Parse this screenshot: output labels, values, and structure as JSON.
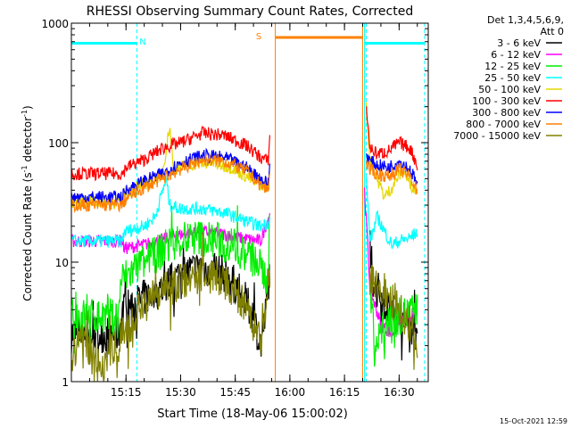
{
  "chart_data": {
    "type": "line",
    "title": "RHESSI Observing Summary Count Rates, Corrected",
    "xlabel": "Start Time (18-May-06 15:00:02)",
    "ylabel_main": "Corrected Count Rate (s",
    "ylabel_sup1": "-1",
    "ylabel_mid": " detector",
    "ylabel_sup2": "-1",
    "ylabel_end": ")",
    "y_scale": "log",
    "ylim": [
      1,
      1000
    ],
    "xlim_minutes": [
      0,
      98
    ],
    "x_ticks": [
      {
        "m": 15,
        "label": "15:15"
      },
      {
        "m": 30,
        "label": "15:30"
      },
      {
        "m": 45,
        "label": "15:45"
      },
      {
        "m": 60,
        "label": "16:00"
      },
      {
        "m": 75,
        "label": "16:15"
      },
      {
        "m": 90,
        "label": "16:30"
      }
    ],
    "y_ticks": [
      {
        "v": 1,
        "label": "1"
      },
      {
        "v": 10,
        "label": "10"
      },
      {
        "v": 100,
        "label": "100"
      },
      {
        "v": 1000,
        "label": "1000"
      }
    ],
    "legend_header": [
      "Det 1,3,4,5,6,9,",
      "Att 0"
    ],
    "series": [
      {
        "name": "3 - 6 keV",
        "color": "#000000",
        "seg1": [
          [
            0,
            2.5
          ],
          [
            13,
            2.5
          ],
          [
            14,
            4
          ],
          [
            20,
            5
          ],
          [
            25,
            6
          ],
          [
            30,
            8
          ],
          [
            36,
            9
          ],
          [
            42,
            8
          ],
          [
            46,
            6
          ],
          [
            50,
            3.5
          ],
          [
            52,
            2
          ],
          [
            53.5,
            4
          ],
          [
            54.5,
            9
          ]
        ],
        "seg2": [
          [
            82,
            8
          ],
          [
            84,
            6
          ],
          [
            87,
            4
          ],
          [
            90,
            3.5
          ],
          [
            93,
            3
          ],
          [
            95,
            2.5
          ]
        ]
      },
      {
        "name": "6 - 12 keV",
        "color": "#ff00ff",
        "seg1": [
          [
            0,
            15
          ],
          [
            14,
            15
          ],
          [
            14.5,
            13
          ],
          [
            20,
            14
          ],
          [
            24,
            15
          ],
          [
            27,
            16
          ],
          [
            30,
            17
          ],
          [
            36,
            18
          ],
          [
            42,
            17
          ],
          [
            46,
            16
          ],
          [
            52,
            15
          ],
          [
            54.5,
            26
          ]
        ],
        "seg2": [
          [
            80.5,
            40
          ],
          [
            81.5,
            12
          ],
          [
            82,
            6
          ],
          [
            85,
            3
          ],
          [
            88,
            2.5
          ],
          [
            90,
            3
          ],
          [
            93,
            3.5
          ],
          [
            95,
            4
          ]
        ]
      },
      {
        "name": "12 - 25 keV",
        "color": "#00ee00",
        "seg1": [
          [
            0,
            3.5
          ],
          [
            13,
            3.5
          ],
          [
            13.5,
            7
          ],
          [
            18,
            9
          ],
          [
            24,
            12
          ],
          [
            28,
            15
          ],
          [
            35,
            16
          ],
          [
            42,
            15
          ],
          [
            48,
            12
          ],
          [
            52,
            9
          ],
          [
            54,
            7
          ],
          [
            54.5,
            25
          ]
        ],
        "seg2": [
          [
            82,
            6
          ],
          [
            83.5,
            2
          ],
          [
            85,
            2.6
          ],
          [
            90,
            3.5
          ],
          [
            95,
            4
          ]
        ]
      },
      {
        "name": "25 - 50 keV",
        "color": "#00ffff",
        "seg1": [
          [
            0,
            15
          ],
          [
            14,
            15
          ],
          [
            14.5,
            18
          ],
          [
            20,
            20
          ],
          [
            23,
            24
          ],
          [
            26,
            50
          ],
          [
            27,
            30
          ],
          [
            30,
            28
          ],
          [
            36,
            28
          ],
          [
            42,
            26
          ],
          [
            48,
            22
          ],
          [
            52,
            20
          ],
          [
            54.5,
            22
          ]
        ],
        "seg2": [
          [
            81,
            50
          ],
          [
            82,
            15
          ],
          [
            84,
            24
          ],
          [
            86,
            18
          ],
          [
            88,
            14
          ],
          [
            90,
            15
          ],
          [
            93,
            16
          ],
          [
            95,
            18
          ]
        ]
      },
      {
        "name": "50 - 100 keV",
        "color": "#e6d800",
        "seg1": [
          [
            0,
            32
          ],
          [
            14,
            32
          ],
          [
            14.5,
            38
          ],
          [
            20,
            45
          ],
          [
            25,
            55
          ],
          [
            27,
            140
          ],
          [
            28,
            60
          ],
          [
            32,
            65
          ],
          [
            38,
            68
          ],
          [
            44,
            62
          ],
          [
            50,
            48
          ],
          [
            54,
            42
          ],
          [
            54.5,
            55
          ]
        ],
        "seg2": [
          [
            81,
            200
          ],
          [
            82,
            70
          ],
          [
            84,
            50
          ],
          [
            86,
            35
          ],
          [
            88,
            42
          ],
          [
            91,
            60
          ],
          [
            93,
            45
          ],
          [
            95,
            40
          ]
        ]
      },
      {
        "name": "100 - 300 keV",
        "color": "#ff0000",
        "seg1": [
          [
            0,
            55
          ],
          [
            14,
            55
          ],
          [
            15,
            62
          ],
          [
            20,
            72
          ],
          [
            25,
            90
          ],
          [
            30,
            100
          ],
          [
            36,
            120
          ],
          [
            42,
            115
          ],
          [
            48,
            95
          ],
          [
            52,
            75
          ],
          [
            54,
            70
          ],
          [
            54.5,
            110
          ]
        ],
        "seg2": [
          [
            81,
            200
          ],
          [
            82,
            90
          ],
          [
            84,
            80
          ],
          [
            87,
            85
          ],
          [
            90,
            100
          ],
          [
            93,
            90
          ],
          [
            95,
            65
          ]
        ]
      },
      {
        "name": "300 - 800 keV",
        "color": "#0000ff",
        "seg1": [
          [
            0,
            35
          ],
          [
            14,
            35
          ],
          [
            15,
            40
          ],
          [
            20,
            48
          ],
          [
            25,
            55
          ],
          [
            30,
            68
          ],
          [
            36,
            78
          ],
          [
            42,
            75
          ],
          [
            48,
            62
          ],
          [
            52,
            50
          ],
          [
            54,
            45
          ],
          [
            54.5,
            65
          ]
        ],
        "seg2": [
          [
            81,
            80
          ],
          [
            82,
            70
          ],
          [
            84,
            65
          ],
          [
            87,
            62
          ],
          [
            90,
            70
          ],
          [
            93,
            60
          ],
          [
            95,
            45
          ]
        ]
      },
      {
        "name": "800 - 7000 keV",
        "color": "#ff8000",
        "seg1": [
          [
            0,
            30
          ],
          [
            14,
            30
          ],
          [
            15,
            34
          ],
          [
            20,
            42
          ],
          [
            25,
            50
          ],
          [
            30,
            60
          ],
          [
            36,
            72
          ],
          [
            42,
            70
          ],
          [
            48,
            58
          ],
          [
            52,
            44
          ],
          [
            54,
            40
          ],
          [
            54.5,
            55
          ]
        ],
        "seg2": [
          [
            81,
            70
          ],
          [
            82,
            58
          ],
          [
            84,
            55
          ],
          [
            87,
            52
          ],
          [
            90,
            60
          ],
          [
            93,
            52
          ],
          [
            95,
            40
          ]
        ]
      },
      {
        "name": "7000 - 15000 keV",
        "color": "#808000",
        "seg1": [
          [
            0,
            1.5
          ],
          [
            3,
            2.5
          ],
          [
            8,
            1.3
          ],
          [
            12,
            2
          ],
          [
            13,
            1.2
          ],
          [
            13.5,
            2.5
          ],
          [
            16,
            3
          ],
          [
            20,
            4.5
          ],
          [
            25,
            5.5
          ],
          [
            30,
            7
          ],
          [
            36,
            8
          ],
          [
            42,
            7
          ],
          [
            46,
            5
          ],
          [
            50,
            3
          ],
          [
            52,
            2
          ],
          [
            54.5,
            8
          ]
        ],
        "seg2": [
          [
            82,
            8
          ],
          [
            84,
            6
          ],
          [
            87,
            5
          ],
          [
            90,
            4
          ],
          [
            93,
            3
          ],
          [
            95,
            2.2
          ]
        ]
      }
    ],
    "annotations": [
      {
        "label": "N",
        "color": "#00ffff"
      },
      {
        "label": "S",
        "color": "#ff8000"
      }
    ],
    "flag_bars": [
      {
        "color": "#00ffff",
        "x": [
          0,
          18
        ],
        "y": 680
      },
      {
        "color": "#ff8000",
        "x": [
          56,
          80
        ],
        "y": 760
      },
      {
        "color": "#00ffff",
        "x": [
          80.5,
          97
        ],
        "y": 680
      }
    ],
    "vlines": [
      {
        "m": 18,
        "color": "#00ffff",
        "dash": true
      },
      {
        "m": 56,
        "color": "#ff8000",
        "dash": false
      },
      {
        "m": 80,
        "color": "#ff8000",
        "dash": false
      },
      {
        "m": 80.5,
        "color": "#00ffff",
        "dash": false
      },
      {
        "m": 81,
        "color": "#00ffff",
        "dash": true
      },
      {
        "m": 97,
        "color": "#00ffff",
        "dash": true
      }
    ]
  },
  "footer_timestamp": "15-Oct-2021 12:59"
}
